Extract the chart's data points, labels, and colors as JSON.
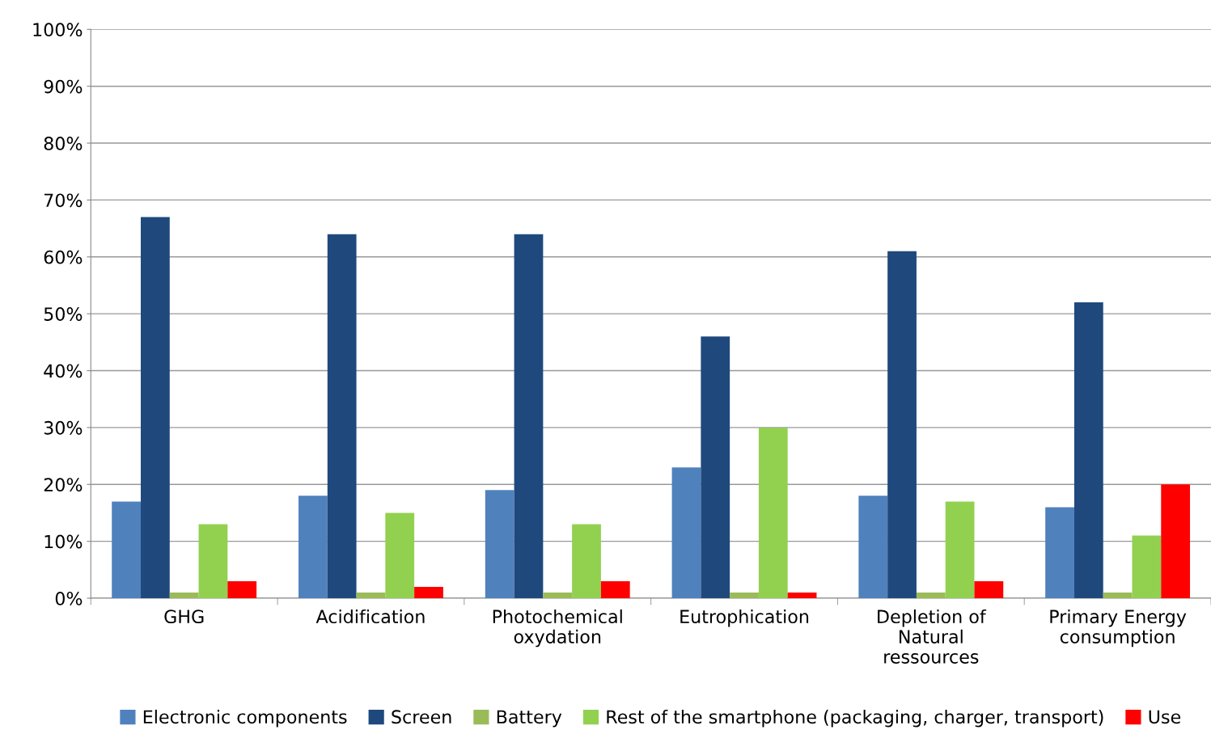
{
  "chart_data": {
    "type": "bar",
    "categories": [
      "GHG",
      "Acidification",
      "Photochemical\noxydation",
      "Eutrophication",
      "Depletion of\nNatural\nressources",
      "Primary Energy\nconsumption"
    ],
    "series": [
      {
        "name": "Electronic components",
        "color": "#4f81bd",
        "values": [
          17,
          18,
          19,
          23,
          18,
          16
        ]
      },
      {
        "name": "Screen",
        "color": "#1f497d",
        "values": [
          67,
          64,
          64,
          46,
          61,
          52
        ]
      },
      {
        "name": "Battery",
        "color": "#9bbb59",
        "values": [
          1,
          1,
          1,
          1,
          1,
          1
        ]
      },
      {
        "name": "Rest of the smartphone (packaging, charger, transport)",
        "color": "#92d050",
        "values": [
          13,
          15,
          13,
          30,
          17,
          11
        ]
      },
      {
        "name": "Use",
        "color": "#ff0000",
        "values": [
          3,
          2,
          3,
          1,
          3,
          20
        ]
      }
    ],
    "ylim": [
      0,
      100
    ],
    "yticks": [
      {
        "value": 0,
        "label": "0%"
      },
      {
        "value": 10,
        "label": "10%"
      },
      {
        "value": 20,
        "label": "20%"
      },
      {
        "value": 30,
        "label": "30%"
      },
      {
        "value": 40,
        "label": "40%"
      },
      {
        "value": 50,
        "label": "50%"
      },
      {
        "value": 60,
        "label": "60%"
      },
      {
        "value": 70,
        "label": "70%"
      },
      {
        "value": 80,
        "label": "80%"
      },
      {
        "value": 90,
        "label": "90%"
      },
      {
        "value": 100,
        "label": "100%"
      }
    ],
    "grid": "y",
    "legend": "bottom"
  }
}
